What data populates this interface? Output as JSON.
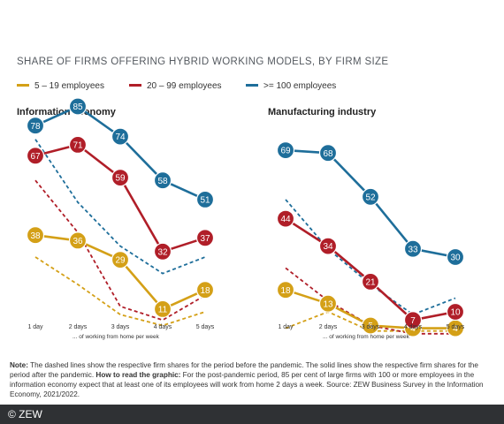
{
  "title": "SHARE OF FIRMS OFFERING HYBRID WORKING MODELS, BY FIRM SIZE",
  "legend": [
    {
      "label": "5 – 19 employees",
      "color": "#d4a017"
    },
    {
      "label": "20 – 99 employees",
      "color": "#b01e28"
    },
    {
      "label": ">= 100 employees",
      "color": "#1e6e9a"
    }
  ],
  "chart_data": [
    {
      "type": "line",
      "title": "Information economy",
      "x": [
        "1 day",
        "2 days",
        "3 days",
        "4 days",
        "5 days"
      ],
      "xlabel": "... of working from home per week",
      "ylim": [
        0,
        100
      ],
      "grid": false,
      "series": [
        {
          "name": "5 – 19 employees",
          "period": "after pandemic",
          "style": "solid",
          "color": "#d4a017",
          "values": [
            38,
            36,
            29,
            11,
            18
          ]
        },
        {
          "name": "20 – 99 employees",
          "period": "after pandemic",
          "style": "solid",
          "color": "#b01e28",
          "values": [
            67,
            71,
            59,
            32,
            37
          ]
        },
        {
          "name": ">= 100 employees",
          "period": "after pandemic",
          "style": "solid",
          "color": "#1e6e9a",
          "values": [
            78,
            85,
            74,
            58,
            51
          ]
        },
        {
          "name": "5 – 19 employees",
          "period": "before pandemic",
          "style": "dashed",
          "color": "#d4a017",
          "values": [
            30,
            20,
            9,
            5,
            10
          ]
        },
        {
          "name": "20 – 99 employees",
          "period": "before pandemic",
          "style": "dashed",
          "color": "#b01e28",
          "values": [
            58,
            39,
            12,
            7,
            16
          ]
        },
        {
          "name": ">= 100 employees",
          "period": "before pandemic",
          "style": "dashed",
          "color": "#1e6e9a",
          "values": [
            73,
            50,
            34,
            24,
            30
          ]
        }
      ]
    },
    {
      "type": "line",
      "title": "Manufacturing industry",
      "x": [
        "1 day",
        "2 days",
        "3 days",
        "4 days",
        "5 days"
      ],
      "xlabel": "... of working from home per week",
      "ylim": [
        0,
        100
      ],
      "grid": false,
      "series": [
        {
          "name": "5 – 19 employees",
          "period": "after pandemic",
          "style": "solid",
          "color": "#d4a017",
          "values": [
            18,
            13,
            5,
            4,
            4
          ]
        },
        {
          "name": "20 – 99 employees",
          "period": "after pandemic",
          "style": "solid",
          "color": "#b01e28",
          "values": [
            44,
            34,
            21,
            7,
            10
          ]
        },
        {
          "name": ">= 100 employees",
          "period": "after pandemic",
          "style": "solid",
          "color": "#1e6e9a",
          "values": [
            69,
            68,
            52,
            33,
            30
          ]
        },
        {
          "name": "5 – 19 employees",
          "period": "before pandemic",
          "style": "dashed",
          "color": "#d4a017",
          "values": [
            4,
            10,
            3,
            3,
            3
          ]
        },
        {
          "name": "20 – 99 employees",
          "period": "before pandemic",
          "style": "dashed",
          "color": "#b01e28",
          "values": [
            26,
            14,
            5,
            2,
            2
          ]
        },
        {
          "name": ">= 100 employees",
          "period": "before pandemic",
          "style": "dashed",
          "color": "#1e6e9a",
          "values": [
            51,
            33,
            20,
            9,
            15
          ]
        }
      ]
    }
  ],
  "note": {
    "label": "Note:",
    "text1": "The dashed lines show the respective firm shares for the period before the pandemic. The solid lines show the respective firm shares for the period after the pandemic.",
    "how_label": "How to read the graphic:",
    "text2": "For the post-pandemic period, 85 per cent of large firms with 100 or more employees in the information economy expect that at least one of its employees will work from home 2 days a week. Source: ZEW Business Survey in the Information Economy, 2021/2022."
  },
  "footer": {
    "copyright": "© ZEW"
  }
}
